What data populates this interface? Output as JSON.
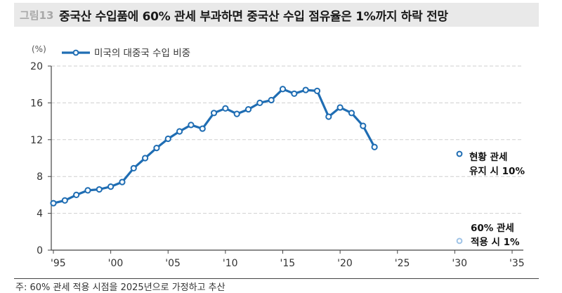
{
  "header": {
    "figure_label": "그림13",
    "title": "중국산 수입품에 60% 관세 부과하면 중국산 수입 점유율은 1%까지 하락 전망"
  },
  "footnote": "주: 60% 관세 적용 시점을 2025년으로 가정하고 추산",
  "annotations": {
    "current": {
      "line1": "현황 관세",
      "line2": "유지 시 10%",
      "value": 10,
      "year": 2030,
      "color": "#1f6db3"
    },
    "tariff60": {
      "line1": "60% 관세",
      "line2": "적용 시 1%",
      "value": 1,
      "year": 2030,
      "color": "#9fc3e6"
    }
  },
  "colors": {
    "series": "#1f6db3",
    "grid": "#cfcfcf",
    "axis": "#444444"
  },
  "chart_data": {
    "type": "line",
    "title": "중국산 수입품에 60% 관세 부과하면 중국산 수입 점유율은 1%까지 하락 전망",
    "xlabel": "",
    "ylabel": "(%)",
    "ylim": [
      0,
      20
    ],
    "xlim": [
      1995,
      2035
    ],
    "yticks": [
      0,
      4,
      8,
      12,
      16,
      20
    ],
    "xticks": [
      "'95",
      "'00",
      "'05",
      "'10",
      "'15",
      "'20",
      "'25",
      "'30",
      "'35"
    ],
    "grid": true,
    "legend_position": "top-left",
    "series": [
      {
        "name": "미국의 대중국 수입 비중",
        "x": [
          1995,
          1996,
          1997,
          1998,
          1999,
          2000,
          2001,
          2002,
          2003,
          2004,
          2005,
          2006,
          2007,
          2008,
          2009,
          2010,
          2011,
          2012,
          2013,
          2014,
          2015,
          2016,
          2017,
          2018,
          2019,
          2020,
          2021,
          2022,
          2023
        ],
        "values": [
          5.1,
          5.4,
          6.0,
          6.5,
          6.6,
          6.9,
          7.4,
          8.9,
          10.0,
          11.1,
          12.1,
          12.9,
          13.6,
          13.2,
          14.9,
          15.4,
          14.8,
          15.3,
          16.0,
          16.3,
          17.5,
          17.0,
          17.4,
          17.3,
          14.5,
          15.5,
          14.9,
          13.5,
          11.2
        ]
      }
    ],
    "annotations": [
      {
        "text": "현황 관세 유지 시 10%",
        "x": 2030,
        "y": 10
      },
      {
        "text": "60% 관세 적용 시 1%",
        "x": 2030,
        "y": 1
      }
    ]
  }
}
